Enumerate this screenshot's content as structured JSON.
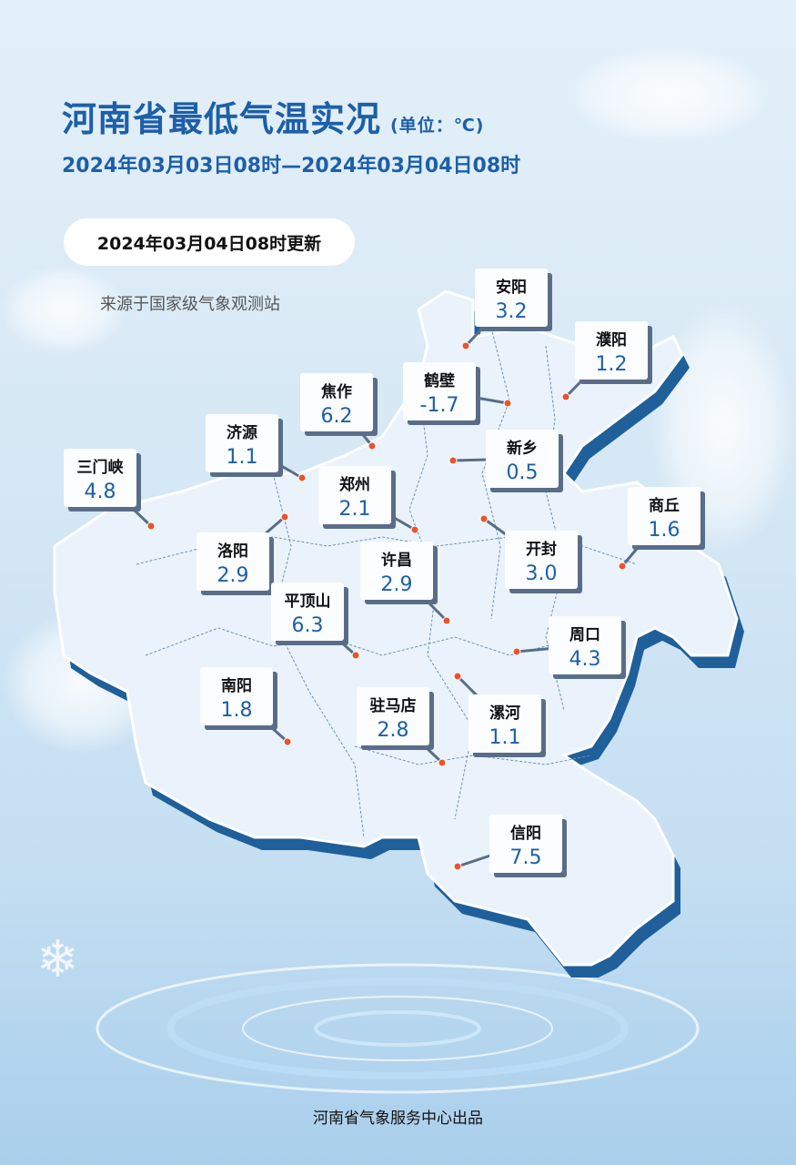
{
  "header": {
    "title": "河南省最低气温实况",
    "unit": "(单位：℃)",
    "period": "2024年03月03日08时—2024年03月04日08时"
  },
  "update_badge": "2024年03月04日08时更新",
  "source": "来源于国家级气象观测站",
  "footer": "河南省气象服务中心出品",
  "colors": {
    "title": "#1d5fa8",
    "value": "#1d5fa8",
    "station_dot": "#e9542d",
    "map_fill": "#eaf3fb",
    "map_edge": "#1f5f9a"
  },
  "stations": [
    {
      "name": "安阳",
      "value": "3.2"
    },
    {
      "name": "濮阳",
      "value": "1.2"
    },
    {
      "name": "鹤壁",
      "value": "-1.7"
    },
    {
      "name": "焦作",
      "value": "6.2"
    },
    {
      "name": "济源",
      "value": "1.1"
    },
    {
      "name": "新乡",
      "value": "0.5"
    },
    {
      "name": "三门峡",
      "value": "4.8"
    },
    {
      "name": "郑州",
      "value": "2.1"
    },
    {
      "name": "开封",
      "value": "3.0"
    },
    {
      "name": "商丘",
      "value": "1.6"
    },
    {
      "name": "洛阳",
      "value": "2.9"
    },
    {
      "name": "许昌",
      "value": "2.9"
    },
    {
      "name": "平顶山",
      "value": "6.3"
    },
    {
      "name": "周口",
      "value": "4.3"
    },
    {
      "name": "南阳",
      "value": "1.8"
    },
    {
      "name": "驻马店",
      "value": "2.8"
    },
    {
      "name": "漯河",
      "value": "1.1"
    },
    {
      "name": "信阳",
      "value": "7.5"
    }
  ]
}
